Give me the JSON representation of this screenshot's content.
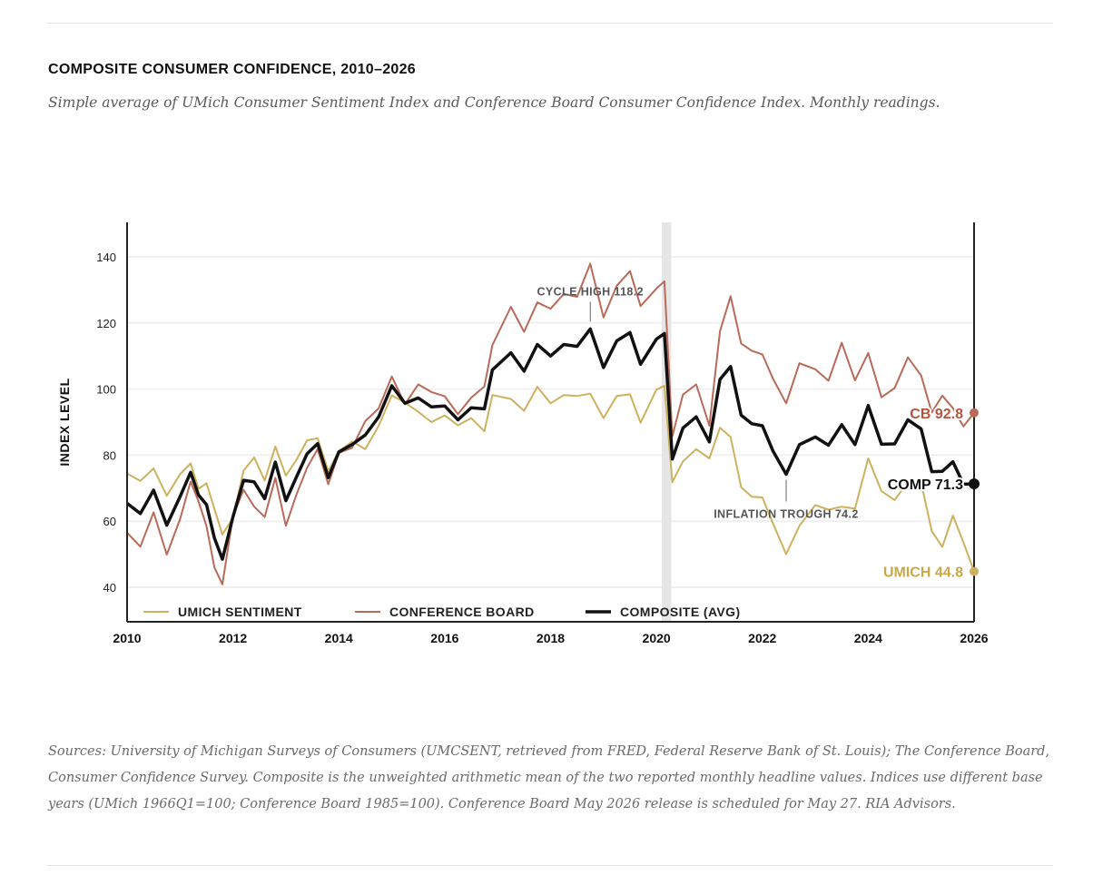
{
  "header": {
    "title": "COMPOSITE CONSUMER CONFIDENCE, 2010–2026",
    "subtitle": "Simple average of UMich Consumer Sentiment Index and Conference Board Consumer Confidence Index. Monthly readings."
  },
  "footer": {
    "source_note": "Sources: University of Michigan Surveys of Consumers (UMCSENT, retrieved from FRED, Federal Reserve Bank of St. Louis); The Conference Board, Consumer Confidence Survey. Composite is the unweighted arithmetic mean of the two reported monthly headline values. Indices use different base years (UMich 1966Q1=100; Conference Board 1985=100). Conference Board May 2026 release is scheduled for May 27. RIA Advisors."
  },
  "chart_data": {
    "type": "line",
    "xlabel": "",
    "ylabel": "INDEX LEVEL",
    "xlim": [
      2010,
      2026
    ],
    "ylim": [
      30,
      150
    ],
    "x_ticks": [
      2010,
      2012,
      2014,
      2016,
      2018,
      2020,
      2022,
      2024,
      2026
    ],
    "y_ticks": [
      40,
      60,
      80,
      100,
      120,
      140
    ],
    "grid": "horizontal",
    "legend_position": "bottom-left",
    "shaded_period": [
      2020.1,
      2020.28
    ],
    "colors": {
      "umich": "#cdb15e",
      "cb": "#b96a58",
      "composite": "#111111",
      "grid": "#f0f0f0",
      "shade": "#e6e6e6"
    },
    "annotations": [
      {
        "text": "CYCLE HIGH 118.2",
        "x": 2018.75,
        "y": 118.2
      },
      {
        "text": "INFLATION TROUGH 74.2",
        "x": 2022.45,
        "y": 74.2
      }
    ],
    "series": [
      {
        "name": "UMICH SENTIMENT",
        "key": "umich",
        "end_label": "UMICH 44.8",
        "points": [
          [
            2010.0,
            74.4
          ],
          [
            2010.25,
            72.2
          ],
          [
            2010.5,
            76
          ],
          [
            2010.75,
            67.7
          ],
          [
            2011.0,
            74.2
          ],
          [
            2011.2,
            77.5
          ],
          [
            2011.35,
            69.8
          ],
          [
            2011.5,
            71.5
          ],
          [
            2011.65,
            63.7
          ],
          [
            2011.8,
            56
          ],
          [
            2012.0,
            61
          ],
          [
            2012.2,
            75.3
          ],
          [
            2012.4,
            79.3
          ],
          [
            2012.6,
            72.3
          ],
          [
            2012.8,
            82.6
          ],
          [
            2013.0,
            73.8
          ],
          [
            2013.2,
            78.6
          ],
          [
            2013.4,
            84.5
          ],
          [
            2013.6,
            85.1
          ],
          [
            2013.8,
            75.1
          ],
          [
            2014.0,
            81.2
          ],
          [
            2014.25,
            84.1
          ],
          [
            2014.5,
            81.8
          ],
          [
            2014.75,
            88.8
          ],
          [
            2015.0,
            98.1
          ],
          [
            2015.25,
            95.9
          ],
          [
            2015.5,
            93.1
          ],
          [
            2015.75,
            90
          ],
          [
            2016.0,
            92
          ],
          [
            2016.25,
            89
          ],
          [
            2016.5,
            91.2
          ],
          [
            2016.75,
            87.2
          ],
          [
            2016.9,
            98.2
          ],
          [
            2017.25,
            97
          ],
          [
            2017.5,
            93.4
          ],
          [
            2017.75,
            100.7
          ],
          [
            2018.0,
            95.7
          ],
          [
            2018.25,
            98.2
          ],
          [
            2018.5,
            97.9
          ],
          [
            2018.75,
            98.6
          ],
          [
            2019.0,
            91.2
          ],
          [
            2019.25,
            97.9
          ],
          [
            2019.5,
            98.4
          ],
          [
            2019.7,
            89.8
          ],
          [
            2020.0,
            99.8
          ],
          [
            2020.15,
            101
          ],
          [
            2020.3,
            71.8
          ],
          [
            2020.5,
            78.1
          ],
          [
            2020.75,
            81.8
          ],
          [
            2021.0,
            79
          ],
          [
            2021.2,
            88.3
          ],
          [
            2021.4,
            85.5
          ],
          [
            2021.6,
            70.3
          ],
          [
            2021.8,
            67.4
          ],
          [
            2022.0,
            67.2
          ],
          [
            2022.2,
            59.4
          ],
          [
            2022.45,
            50
          ],
          [
            2022.7,
            58.6
          ],
          [
            2023.0,
            64.9
          ],
          [
            2023.25,
            63.5
          ],
          [
            2023.5,
            64.4
          ],
          [
            2023.75,
            63.8
          ],
          [
            2024.0,
            79
          ],
          [
            2024.25,
            69.1
          ],
          [
            2024.5,
            66.4
          ],
          [
            2024.75,
            71.8
          ],
          [
            2025.0,
            71.7
          ],
          [
            2025.2,
            57
          ],
          [
            2025.4,
            52.2
          ],
          [
            2025.6,
            61.7
          ],
          [
            2025.8,
            53.6
          ],
          [
            2026.0,
            44.8
          ]
        ]
      },
      {
        "name": "CONFERENCE BOARD",
        "key": "cb",
        "end_label": "CB 92.8",
        "points": [
          [
            2010.0,
            56.5
          ],
          [
            2010.25,
            52.3
          ],
          [
            2010.5,
            62.7
          ],
          [
            2010.75,
            49.9
          ],
          [
            2011.0,
            60.6
          ],
          [
            2011.2,
            72
          ],
          [
            2011.35,
            66
          ],
          [
            2011.5,
            58.5
          ],
          [
            2011.65,
            46
          ],
          [
            2011.8,
            40.9
          ],
          [
            2012.0,
            61.5
          ],
          [
            2012.2,
            69.5
          ],
          [
            2012.4,
            64.4
          ],
          [
            2012.6,
            61.3
          ],
          [
            2012.8,
            73.1
          ],
          [
            2013.0,
            58.6
          ],
          [
            2013.2,
            68.1
          ],
          [
            2013.4,
            76.2
          ],
          [
            2013.6,
            81.8
          ],
          [
            2013.8,
            71.2
          ],
          [
            2014.0,
            80.7
          ],
          [
            2014.25,
            82.2
          ],
          [
            2014.5,
            90.3
          ],
          [
            2014.75,
            94.1
          ],
          [
            2015.0,
            103.8
          ],
          [
            2015.25,
            95.4
          ],
          [
            2015.5,
            101.4
          ],
          [
            2015.75,
            99.1
          ],
          [
            2016.0,
            97.8
          ],
          [
            2016.25,
            92.4
          ],
          [
            2016.5,
            97.4
          ],
          [
            2016.75,
            100.8
          ],
          [
            2016.9,
            113.3
          ],
          [
            2017.25,
            124.9
          ],
          [
            2017.5,
            117.3
          ],
          [
            2017.75,
            126.2
          ],
          [
            2018.0,
            124.3
          ],
          [
            2018.25,
            128.8
          ],
          [
            2018.5,
            127.9
          ],
          [
            2018.75,
            137.9
          ],
          [
            2019.0,
            121.7
          ],
          [
            2019.25,
            131.3
          ],
          [
            2019.5,
            135.7
          ],
          [
            2019.7,
            125.1
          ],
          [
            2020.0,
            130.4
          ],
          [
            2020.15,
            132.6
          ],
          [
            2020.3,
            85.7
          ],
          [
            2020.5,
            98.3
          ],
          [
            2020.75,
            101.4
          ],
          [
            2021.0,
            88.9
          ],
          [
            2021.2,
            117.5
          ],
          [
            2021.4,
            128.1
          ],
          [
            2021.6,
            113.8
          ],
          [
            2021.8,
            111.6
          ],
          [
            2022.0,
            110.5
          ],
          [
            2022.2,
            103.2
          ],
          [
            2022.45,
            95.7
          ],
          [
            2022.7,
            107.8
          ],
          [
            2023.0,
            106
          ],
          [
            2023.25,
            102.5
          ],
          [
            2023.5,
            114
          ],
          [
            2023.75,
            102.6
          ],
          [
            2024.0,
            110.9
          ],
          [
            2024.25,
            97.5
          ],
          [
            2024.5,
            100.3
          ],
          [
            2024.75,
            109.6
          ],
          [
            2025.0,
            104.1
          ],
          [
            2025.2,
            92.9
          ],
          [
            2025.4,
            98
          ],
          [
            2025.6,
            94.2
          ],
          [
            2025.8,
            88.7
          ],
          [
            2026.0,
            92.8
          ]
        ]
      },
      {
        "name": "COMPOSITE (AVG)",
        "key": "composite",
        "end_label": "COMP 71.3",
        "points": [
          [
            2010.0,
            65.4
          ],
          [
            2010.25,
            62.3
          ],
          [
            2010.5,
            69.4
          ],
          [
            2010.75,
            58.8
          ],
          [
            2011.0,
            67.4
          ],
          [
            2011.2,
            74.8
          ],
          [
            2011.35,
            67.9
          ],
          [
            2011.5,
            65
          ],
          [
            2011.65,
            54.9
          ],
          [
            2011.8,
            48.5
          ],
          [
            2012.0,
            61.3
          ],
          [
            2012.2,
            72.4
          ],
          [
            2012.4,
            71.9
          ],
          [
            2012.6,
            66.8
          ],
          [
            2012.8,
            77.9
          ],
          [
            2013.0,
            66.2
          ],
          [
            2013.2,
            73.4
          ],
          [
            2013.4,
            80.4
          ],
          [
            2013.6,
            83.5
          ],
          [
            2013.8,
            73.2
          ],
          [
            2014.0,
            81
          ],
          [
            2014.25,
            83.2
          ],
          [
            2014.5,
            86.1
          ],
          [
            2014.75,
            91.5
          ],
          [
            2015.0,
            101
          ],
          [
            2015.25,
            95.7
          ],
          [
            2015.5,
            97.3
          ],
          [
            2015.75,
            94.6
          ],
          [
            2016.0,
            94.9
          ],
          [
            2016.25,
            90.7
          ],
          [
            2016.5,
            94.3
          ],
          [
            2016.75,
            94
          ],
          [
            2016.9,
            105.8
          ],
          [
            2017.25,
            111
          ],
          [
            2017.5,
            105.4
          ],
          [
            2017.75,
            113.5
          ],
          [
            2018.0,
            110
          ],
          [
            2018.25,
            113.5
          ],
          [
            2018.5,
            112.9
          ],
          [
            2018.75,
            118.2
          ],
          [
            2019.0,
            106.5
          ],
          [
            2019.25,
            114.6
          ],
          [
            2019.5,
            117.1
          ],
          [
            2019.7,
            107.5
          ],
          [
            2020.0,
            115.1
          ],
          [
            2020.15,
            116.8
          ],
          [
            2020.3,
            78.8
          ],
          [
            2020.5,
            88.2
          ],
          [
            2020.75,
            91.6
          ],
          [
            2021.0,
            84
          ],
          [
            2021.2,
            102.9
          ],
          [
            2021.4,
            106.8
          ],
          [
            2021.6,
            92.1
          ],
          [
            2021.8,
            89.5
          ],
          [
            2022.0,
            88.9
          ],
          [
            2022.2,
            81.3
          ],
          [
            2022.45,
            74.2
          ],
          [
            2022.7,
            83.2
          ],
          [
            2023.0,
            85.5
          ],
          [
            2023.25,
            83
          ],
          [
            2023.5,
            89.2
          ],
          [
            2023.75,
            83.2
          ],
          [
            2024.0,
            95
          ],
          [
            2024.25,
            83.3
          ],
          [
            2024.5,
            83.4
          ],
          [
            2024.75,
            90.7
          ],
          [
            2025.0,
            87.9
          ],
          [
            2025.2,
            75
          ],
          [
            2025.4,
            75.1
          ],
          [
            2025.6,
            78
          ],
          [
            2025.8,
            71.2
          ],
          [
            2026.0,
            71.3
          ]
        ]
      }
    ]
  }
}
